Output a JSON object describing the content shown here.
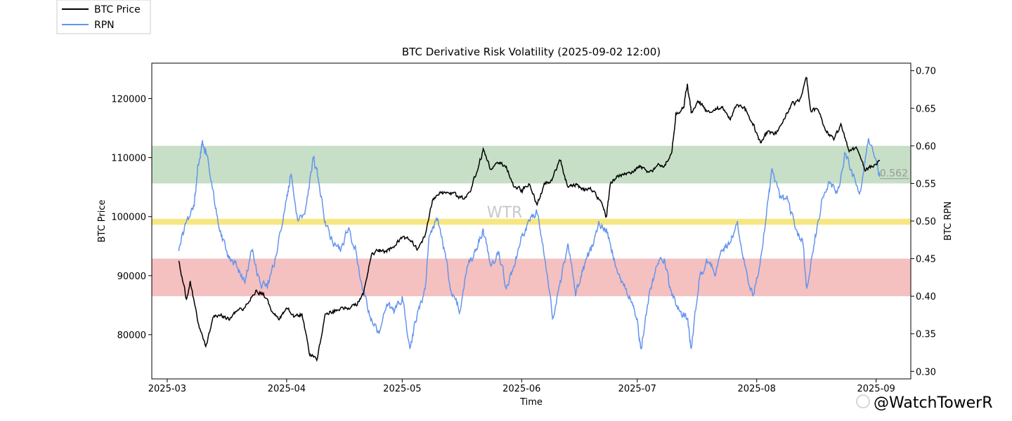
{
  "legend": {
    "items": [
      {
        "label": "BTC Price",
        "color": "#000000"
      },
      {
        "label": "RPN",
        "color": "#6495ED"
      }
    ]
  },
  "watermark": {
    "center_text": "WTR",
    "corner_text": "@WatchTowerR"
  },
  "chart_data": {
    "type": "line",
    "title": "BTC Derivative Risk Volatility (2025-09-02 12:00)",
    "xlabel": "Time",
    "ylabel_left": "BTC Price",
    "ylabel_right": "BTC RPN",
    "x_ticks": [
      "2025-03",
      "2025-04",
      "2025-05",
      "2025-06",
      "2025-07",
      "2025-08",
      "2025-09"
    ],
    "x_range": [
      "2025-02-25",
      "2025-09-10"
    ],
    "y_left_ticks": [
      80000,
      90000,
      100000,
      110000,
      120000
    ],
    "y_left_range": [
      72500,
      126000
    ],
    "y_right_ticks": [
      "0.30",
      "0.35",
      "0.40",
      "0.45",
      "0.50",
      "0.55",
      "0.60",
      "0.65",
      "0.70"
    ],
    "y_right_range": [
      0.29,
      0.71
    ],
    "bands": [
      {
        "name": "green",
        "from": 0.55,
        "to": 0.6,
        "color": "#c6dfc6"
      },
      {
        "name": "yellow",
        "from": 0.495,
        "to": 0.503,
        "color": "#f7e783"
      },
      {
        "name": "red",
        "from": 0.4,
        "to": 0.45,
        "color": "#f5c0c0"
      }
    ],
    "annotation": {
      "text": "0.562",
      "value": 0.562
    },
    "series": [
      {
        "name": "BTC Price",
        "axis": "left",
        "color": "#000000",
        "points": [
          [
            "2025-03-04",
            92500
          ],
          [
            "2025-03-06",
            86000
          ],
          [
            "2025-03-07",
            89000
          ],
          [
            "2025-03-09",
            82000
          ],
          [
            "2025-03-11",
            78000
          ],
          [
            "2025-03-13",
            83000
          ],
          [
            "2025-03-15",
            83500
          ],
          [
            "2025-03-17",
            82500
          ],
          [
            "2025-03-19",
            84000
          ],
          [
            "2025-03-21",
            84500
          ],
          [
            "2025-03-24",
            87500
          ],
          [
            "2025-03-26",
            87000
          ],
          [
            "2025-03-28",
            84000
          ],
          [
            "2025-03-30",
            82500
          ],
          [
            "2025-04-01",
            84500
          ],
          [
            "2025-04-03",
            83000
          ],
          [
            "2025-04-05",
            83500
          ],
          [
            "2025-04-07",
            76500
          ],
          [
            "2025-04-09",
            76000
          ],
          [
            "2025-04-11",
            83500
          ],
          [
            "2025-04-13",
            84000
          ],
          [
            "2025-04-15",
            84500
          ],
          [
            "2025-04-17",
            84500
          ],
          [
            "2025-04-19",
            85000
          ],
          [
            "2025-04-21",
            87000
          ],
          [
            "2025-04-23",
            93500
          ],
          [
            "2025-04-25",
            94500
          ],
          [
            "2025-04-27",
            94000
          ],
          [
            "2025-04-29",
            95000
          ],
          [
            "2025-05-01",
            96500
          ],
          [
            "2025-05-03",
            96000
          ],
          [
            "2025-05-05",
            94500
          ],
          [
            "2025-05-07",
            97000
          ],
          [
            "2025-05-09",
            103000
          ],
          [
            "2025-05-11",
            104000
          ],
          [
            "2025-05-13",
            104000
          ],
          [
            "2025-05-15",
            103500
          ],
          [
            "2025-05-17",
            103000
          ],
          [
            "2025-05-19",
            105000
          ],
          [
            "2025-05-21",
            109000
          ],
          [
            "2025-05-22",
            111500
          ],
          [
            "2025-05-24",
            108000
          ],
          [
            "2025-05-26",
            109000
          ],
          [
            "2025-05-28",
            108500
          ],
          [
            "2025-05-30",
            105000
          ],
          [
            "2025-06-01",
            104500
          ],
          [
            "2025-06-03",
            105500
          ],
          [
            "2025-06-05",
            102000
          ],
          [
            "2025-06-07",
            105500
          ],
          [
            "2025-06-09",
            106500
          ],
          [
            "2025-06-11",
            109500
          ],
          [
            "2025-06-13",
            105000
          ],
          [
            "2025-06-15",
            105500
          ],
          [
            "2025-06-17",
            104500
          ],
          [
            "2025-06-19",
            104500
          ],
          [
            "2025-06-21",
            103000
          ],
          [
            "2025-06-23",
            100000
          ],
          [
            "2025-06-24",
            105500
          ],
          [
            "2025-06-26",
            107000
          ],
          [
            "2025-06-28",
            107300
          ],
          [
            "2025-06-30",
            107500
          ],
          [
            "2025-07-02",
            108500
          ],
          [
            "2025-07-04",
            107500
          ],
          [
            "2025-07-06",
            108500
          ],
          [
            "2025-07-08",
            108500
          ],
          [
            "2025-07-10",
            111000
          ],
          [
            "2025-07-11",
            117500
          ],
          [
            "2025-07-13",
            118500
          ],
          [
            "2025-07-14",
            122500
          ],
          [
            "2025-07-15",
            117500
          ],
          [
            "2025-07-17",
            119500
          ],
          [
            "2025-07-19",
            117800
          ],
          [
            "2025-07-21",
            118000
          ],
          [
            "2025-07-23",
            118500
          ],
          [
            "2025-07-25",
            116500
          ],
          [
            "2025-07-27",
            119000
          ],
          [
            "2025-07-29",
            118000
          ],
          [
            "2025-07-31",
            115500
          ],
          [
            "2025-08-02",
            112500
          ],
          [
            "2025-08-04",
            114500
          ],
          [
            "2025-08-06",
            114000
          ],
          [
            "2025-08-08",
            116500
          ],
          [
            "2025-08-10",
            119000
          ],
          [
            "2025-08-12",
            119500
          ],
          [
            "2025-08-14",
            123500
          ],
          [
            "2025-08-15",
            118000
          ],
          [
            "2025-08-17",
            118000
          ],
          [
            "2025-08-19",
            114500
          ],
          [
            "2025-08-21",
            113000
          ],
          [
            "2025-08-23",
            115500
          ],
          [
            "2025-08-25",
            111000
          ],
          [
            "2025-08-27",
            111500
          ],
          [
            "2025-08-29",
            108000
          ],
          [
            "2025-08-31",
            108500
          ],
          [
            "2025-09-02",
            109500
          ]
        ]
      },
      {
        "name": "RPN",
        "axis": "right",
        "color": "#6495ED",
        "points": [
          [
            "2025-03-04",
            0.46
          ],
          [
            "2025-03-06",
            0.5
          ],
          [
            "2025-03-08",
            0.52
          ],
          [
            "2025-03-09",
            0.575
          ],
          [
            "2025-03-10",
            0.6
          ],
          [
            "2025-03-11",
            0.595
          ],
          [
            "2025-03-13",
            0.54
          ],
          [
            "2025-03-15",
            0.48
          ],
          [
            "2025-03-17",
            0.45
          ],
          [
            "2025-03-19",
            0.44
          ],
          [
            "2025-03-21",
            0.42
          ],
          [
            "2025-03-23",
            0.46
          ],
          [
            "2025-03-25",
            0.42
          ],
          [
            "2025-03-27",
            0.41
          ],
          [
            "2025-03-29",
            0.45
          ],
          [
            "2025-04-01",
            0.53
          ],
          [
            "2025-04-02",
            0.56
          ],
          [
            "2025-04-04",
            0.5
          ],
          [
            "2025-04-06",
            0.52
          ],
          [
            "2025-04-08",
            0.585
          ],
          [
            "2025-04-09",
            0.56
          ],
          [
            "2025-04-11",
            0.5
          ],
          [
            "2025-04-13",
            0.47
          ],
          [
            "2025-04-15",
            0.46
          ],
          [
            "2025-04-17",
            0.49
          ],
          [
            "2025-04-19",
            0.46
          ],
          [
            "2025-04-21",
            0.4
          ],
          [
            "2025-04-23",
            0.37
          ],
          [
            "2025-04-25",
            0.35
          ],
          [
            "2025-04-27",
            0.39
          ],
          [
            "2025-04-29",
            0.38
          ],
          [
            "2025-05-01",
            0.4
          ],
          [
            "2025-05-03",
            0.33
          ],
          [
            "2025-05-05",
            0.38
          ],
          [
            "2025-05-07",
            0.41
          ],
          [
            "2025-05-08",
            0.48
          ],
          [
            "2025-05-10",
            0.5
          ],
          [
            "2025-05-12",
            0.46
          ],
          [
            "2025-05-14",
            0.4
          ],
          [
            "2025-05-16",
            0.38
          ],
          [
            "2025-05-18",
            0.44
          ],
          [
            "2025-05-20",
            0.46
          ],
          [
            "2025-05-22",
            0.49
          ],
          [
            "2025-05-24",
            0.44
          ],
          [
            "2025-05-26",
            0.46
          ],
          [
            "2025-05-28",
            0.41
          ],
          [
            "2025-05-30",
            0.44
          ],
          [
            "2025-06-01",
            0.48
          ],
          [
            "2025-06-03",
            0.5
          ],
          [
            "2025-06-05",
            0.51
          ],
          [
            "2025-06-07",
            0.45
          ],
          [
            "2025-06-09",
            0.37
          ],
          [
            "2025-06-11",
            0.42
          ],
          [
            "2025-06-13",
            0.47
          ],
          [
            "2025-06-15",
            0.4
          ],
          [
            "2025-06-17",
            0.44
          ],
          [
            "2025-06-19",
            0.46
          ],
          [
            "2025-06-21",
            0.5
          ],
          [
            "2025-06-23",
            0.49
          ],
          [
            "2025-06-25",
            0.45
          ],
          [
            "2025-06-27",
            0.42
          ],
          [
            "2025-06-29",
            0.4
          ],
          [
            "2025-07-01",
            0.37
          ],
          [
            "2025-07-02",
            0.33
          ],
          [
            "2025-07-04",
            0.4
          ],
          [
            "2025-07-06",
            0.44
          ],
          [
            "2025-07-08",
            0.45
          ],
          [
            "2025-07-10",
            0.4
          ],
          [
            "2025-07-12",
            0.38
          ],
          [
            "2025-07-14",
            0.37
          ],
          [
            "2025-07-15",
            0.33
          ],
          [
            "2025-07-17",
            0.42
          ],
          [
            "2025-07-19",
            0.45
          ],
          [
            "2025-07-21",
            0.43
          ],
          [
            "2025-07-23",
            0.46
          ],
          [
            "2025-07-25",
            0.47
          ],
          [
            "2025-07-27",
            0.5
          ],
          [
            "2025-07-29",
            0.44
          ],
          [
            "2025-07-31",
            0.4
          ],
          [
            "2025-08-02",
            0.45
          ],
          [
            "2025-08-04",
            0.53
          ],
          [
            "2025-08-05",
            0.57
          ],
          [
            "2025-08-07",
            0.53
          ],
          [
            "2025-08-09",
            0.53
          ],
          [
            "2025-08-11",
            0.49
          ],
          [
            "2025-08-13",
            0.47
          ],
          [
            "2025-08-14",
            0.41
          ],
          [
            "2025-08-16",
            0.47
          ],
          [
            "2025-08-18",
            0.53
          ],
          [
            "2025-08-20",
            0.55
          ],
          [
            "2025-08-22",
            0.54
          ],
          [
            "2025-08-24",
            0.59
          ],
          [
            "2025-08-26",
            0.56
          ],
          [
            "2025-08-28",
            0.54
          ],
          [
            "2025-08-30",
            0.61
          ],
          [
            "2025-09-01",
            0.58
          ],
          [
            "2025-09-02",
            0.562
          ]
        ]
      }
    ]
  }
}
